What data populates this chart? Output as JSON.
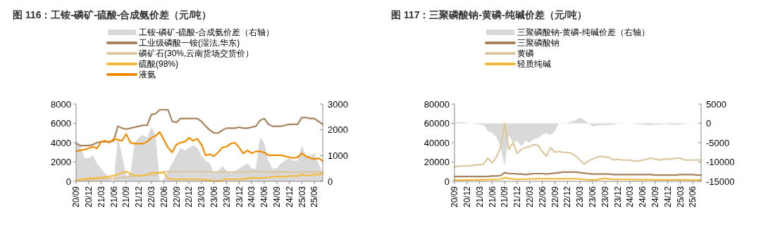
{
  "chart_data": [
    {
      "type": "line",
      "title": "图 116：工铵-磷矿-硫酸-合成氨价差（元/吨）",
      "categories": [
        "20/09",
        null,
        null,
        "20/12",
        null,
        null,
        "21/03",
        null,
        null,
        "21/06",
        null,
        null,
        "21/09",
        null,
        null,
        "21/12",
        null,
        null,
        "22/03",
        null,
        null,
        "22/06",
        null,
        null,
        "22/09",
        null,
        null,
        "22/12",
        null,
        null,
        "23/03",
        null,
        null,
        "23/06",
        null,
        null,
        "23/09",
        null,
        null,
        "23/12",
        null,
        null,
        "24/03",
        null,
        null,
        "24/06",
        null,
        null,
        "24/09",
        null,
        null,
        "24/12",
        null,
        null,
        "25/03",
        null,
        null,
        "25/06",
        null,
        null
      ],
      "ylim": [
        0,
        8000
      ],
      "yticks": [
        0,
        2000,
        4000,
        6000,
        8000
      ],
      "y2lim": [
        0,
        3000
      ],
      "y2ticks": [
        0,
        1000,
        2000,
        3000
      ],
      "legend": "top left",
      "series": [
        {
          "name": "工铵-磷矿-硫酸-合成氨价差（右轴）",
          "type": "area",
          "axis": "y2",
          "color": "#d9d9d9",
          "values": [
            1600,
            1400,
            900,
            900,
            1000,
            700,
            500,
            300,
            100,
            0,
            1700,
            1000,
            200,
            300,
            1500,
            1700,
            1800,
            1700,
            2100,
            1800,
            0,
            100,
            400,
            700,
            1000,
            1300,
            1200,
            1300,
            1400,
            1300,
            1000,
            800,
            700,
            300,
            400,
            600,
            400,
            300,
            400,
            500,
            600,
            700,
            500,
            500,
            1700,
            1500,
            800,
            500,
            500,
            700,
            800,
            900,
            800,
            800,
            1400,
            1000,
            1000,
            1100,
            700,
            300
          ]
        },
        {
          "name": "工业级磷酸一铵(湿法,华东)",
          "color": "#a6825a",
          "values": [
            3900,
            3700,
            3700,
            3700,
            3800,
            4000,
            4100,
            4100,
            4100,
            4200,
            5700,
            5500,
            5400,
            5500,
            5600,
            5700,
            5800,
            5800,
            6900,
            7000,
            7400,
            7400,
            7400,
            6200,
            6100,
            6500,
            6500,
            6500,
            6500,
            6500,
            6200,
            5700,
            5300,
            5000,
            5000,
            5300,
            5500,
            5500,
            5500,
            5600,
            5500,
            5500,
            5600,
            5700,
            6300,
            6500,
            5900,
            5700,
            5700,
            5700,
            5800,
            5900,
            5900,
            5900,
            6600,
            6600,
            6500,
            6500,
            6200,
            5900
          ]
        },
        {
          "name": "磷矿石(30%,云南货场交货价）",
          "color": "#dcc79e",
          "values": [
            100,
            100,
            150,
            150,
            200,
            200,
            250,
            250,
            300,
            300,
            350,
            400,
            450,
            500,
            550,
            550,
            600,
            600,
            650,
            700,
            900,
            1000,
            1000,
            1000,
            1000,
            1000,
            1000,
            1000,
            1000,
            1000,
            1000,
            1000,
            1000,
            950,
            950,
            950,
            950,
            950,
            950,
            950,
            1000,
            1000,
            1000,
            1000,
            1000,
            1000,
            950,
            950,
            950,
            950,
            950,
            950,
            950,
            950,
            950,
            950,
            950,
            950,
            950,
            950
          ]
        },
        {
          "name": "硫酸(98%)",
          "color": "#f5ba3c",
          "values": [
            100,
            150,
            250,
            300,
            300,
            350,
            400,
            450,
            500,
            600,
            700,
            900,
            1000,
            800,
            600,
            600,
            600,
            700,
            900,
            900,
            900,
            900,
            300,
            200,
            200,
            200,
            200,
            200,
            200,
            200,
            200,
            150,
            100,
            50,
            50,
            100,
            250,
            200,
            200,
            200,
            250,
            300,
            350,
            350,
            350,
            350,
            400,
            450,
            500,
            500,
            500,
            550,
            550,
            550,
            700,
            600,
            600,
            700,
            700,
            800
          ]
        },
        {
          "name": "液氨",
          "color": "#f08c00",
          "values": [
            3100,
            3200,
            3300,
            3400,
            3600,
            3400,
            4100,
            4200,
            4000,
            4400,
            4300,
            4200,
            4900,
            4000,
            3900,
            3900,
            3900,
            4100,
            4500,
            4700,
            5100,
            4300,
            3500,
            3000,
            3800,
            4000,
            4100,
            4500,
            4200,
            4400,
            3800,
            2700,
            2800,
            2600,
            3000,
            3500,
            3600,
            3900,
            4000,
            3500,
            2900,
            3200,
            2900,
            3100,
            3100,
            3000,
            2700,
            2700,
            2700,
            2700,
            2600,
            2500,
            2400,
            2500,
            2900,
            2600,
            2400,
            2300,
            2400,
            2100
          ]
        }
      ]
    },
    {
      "type": "line",
      "title": "图 117：三聚磷酸钠-黄磷-纯碱价差（元/吨）",
      "categories": [
        "20/09",
        null,
        null,
        "20/12",
        null,
        null,
        "21/03",
        null,
        null,
        "21/06",
        null,
        null,
        "21/09",
        null,
        null,
        "21/12",
        null,
        null,
        "22/03",
        null,
        null,
        "22/06",
        null,
        null,
        "22/09",
        null,
        null,
        "22/12",
        null,
        null,
        "23/03",
        null,
        null,
        "23/06",
        null,
        null,
        "23/09",
        null,
        null,
        "23/12",
        null,
        null,
        "24/03",
        null,
        null,
        "24/06",
        null,
        null,
        "24/09",
        null,
        null,
        "24/12",
        null,
        null,
        "25/03",
        null,
        null,
        "25/06",
        null,
        null
      ],
      "ylim": [
        0,
        80000
      ],
      "yticks": [
        0,
        20000,
        40000,
        60000,
        80000
      ],
      "y2lim": [
        -15000,
        5000
      ],
      "y2ticks": [
        -15000,
        -10000,
        -5000,
        0,
        5000
      ],
      "legend": "top left",
      "series": [
        {
          "name": "三聚磷酸钠-黄磷-纯碱价差（右轴）",
          "type": "area",
          "axis": "y2",
          "color": "#d9d9d9",
          "values": [
            100,
            300,
            300,
            100,
            0,
            -100,
            -300,
            -500,
            -2000,
            -2500,
            -3500,
            -6000,
            -11000,
            -3000,
            -5000,
            -4500,
            -6000,
            -4500,
            -5000,
            -4000,
            -3800,
            -3000,
            -2500,
            -3000,
            -2000,
            0,
            -100,
            200,
            400,
            800,
            1500,
            800,
            200,
            -800,
            -600,
            -400,
            -500,
            -400,
            -300,
            -100,
            100,
            0,
            0,
            -100,
            -200,
            -300,
            -400,
            -500,
            -300,
            -300,
            -200,
            -200,
            -300,
            -400,
            -300,
            -200,
            0,
            100,
            0,
            0
          ]
        },
        {
          "name": "三聚磷酸钠",
          "color": "#a6825a",
          "values": [
            5000,
            5000,
            5000,
            5000,
            5000,
            5000,
            5000,
            5000,
            5000,
            5500,
            5500,
            6000,
            9000,
            8000,
            8000,
            7500,
            7500,
            7000,
            7500,
            8000,
            8000,
            8000,
            7500,
            8000,
            8500,
            9000,
            9500,
            9500,
            9500,
            9500,
            9000,
            8500,
            8000,
            7500,
            7500,
            7500,
            7500,
            7500,
            7000,
            7000,
            7000,
            7000,
            7000,
            7000,
            7000,
            7000,
            7000,
            7000,
            6500,
            6500,
            6500,
            6500,
            6500,
            6500,
            7000,
            7000,
            7000,
            7000,
            6500,
            6500
          ]
        },
        {
          "name": "黄磷",
          "color": "#dcc79e",
          "values": [
            15000,
            15500,
            16000,
            16000,
            16500,
            17000,
            17000,
            18000,
            24000,
            19000,
            25000,
            35000,
            60000,
            33000,
            40000,
            29000,
            33000,
            35000,
            36000,
            38000,
            37000,
            31000,
            26000,
            35000,
            30000,
            31000,
            30000,
            30000,
            29000,
            26000,
            22000,
            18000,
            21000,
            23000,
            25000,
            26000,
            25000,
            25000,
            22000,
            23000,
            22000,
            22000,
            22000,
            21000,
            21000,
            22000,
            23000,
            24000,
            23000,
            22000,
            23000,
            23000,
            23000,
            24000,
            24000,
            22000,
            22000,
            22000,
            22000,
            22000
          ]
        },
        {
          "name": "轻质纯碱",
          "color": "#f5ba3c",
          "values": [
            1500,
            1200,
            1200,
            1300,
            1400,
            1500,
            1600,
            1700,
            1800,
            1900,
            2000,
            2200,
            4000,
            3000,
            2500,
            2000,
            2200,
            2300,
            2500,
            2600,
            2800,
            2700,
            2600,
            2600,
            2600,
            2600,
            2700,
            2700,
            2700,
            2600,
            2400,
            2000,
            1600,
            1500,
            1600,
            2500,
            3000,
            2500,
            2000,
            2200,
            2000,
            2000,
            1900,
            1900,
            1800,
            1800,
            1800,
            1700,
            1600,
            1600,
            1600,
            1500,
            1500,
            1500,
            1500,
            1500,
            1400,
            1400,
            1400,
            1400
          ]
        }
      ]
    }
  ]
}
